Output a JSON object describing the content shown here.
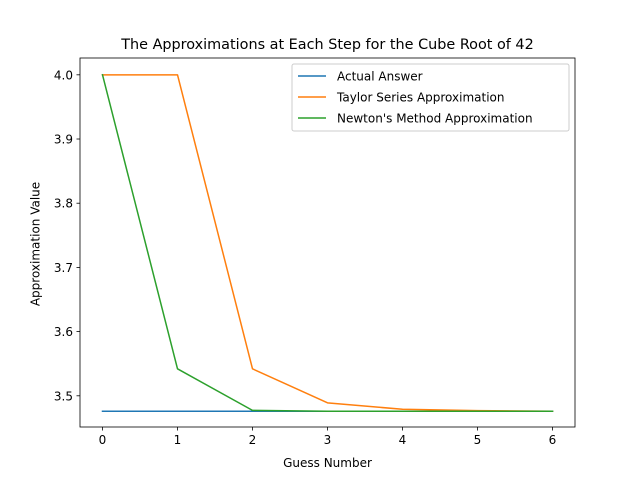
{
  "chart_data": {
    "type": "line",
    "title": "The Approximations at Each Step for the Cube Root of 42",
    "xlabel": "Guess Number",
    "ylabel": "Approximation Value",
    "x": [
      0,
      1,
      2,
      3,
      4,
      5,
      6
    ],
    "xlim": [
      -0.3,
      6.3
    ],
    "ylim": [
      3.4514,
      4.0262
    ],
    "xticks": [
      0,
      1,
      2,
      3,
      4,
      5,
      6
    ],
    "yticks": [
      3.5,
      3.6,
      3.7,
      3.8,
      3.9,
      4.0
    ],
    "ytick_labels": [
      "3.5",
      "3.6",
      "3.7",
      "3.8",
      "3.9",
      "4.0"
    ],
    "grid": false,
    "legend_position": "top-right",
    "series": [
      {
        "name": "Actual Answer",
        "color": "#1f77b4",
        "values": [
          3.476,
          3.476,
          3.476,
          3.476,
          3.476,
          3.476,
          3.476
        ]
      },
      {
        "name": "Taylor Series Approximation",
        "color": "#ff7f0e",
        "values": [
          4.0,
          4.0,
          3.542,
          3.489,
          3.479,
          3.477,
          3.476
        ]
      },
      {
        "name": "Newton's Method Approximation",
        "color": "#2ca02c",
        "values": [
          4.0,
          3.542,
          3.4773,
          3.476,
          3.476,
          3.476,
          3.476
        ]
      }
    ]
  }
}
